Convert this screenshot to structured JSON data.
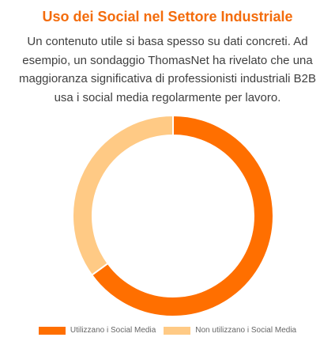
{
  "header": {
    "title": "Uso dei Social nel Settore Industriale",
    "description": "Un contenuto utile si basa spesso su dati concreti. Ad esempio, un sondaggio ThomasNet ha rivelato che una maggioranza significativa di professionisti industriali B2B usa i social media regolarmente per lavoro."
  },
  "colors": {
    "accent": "#f36c0c",
    "series_primary": "#ff6f00",
    "series_secondary": "#ffca85"
  },
  "chart_data": {
    "type": "pie",
    "variant": "doughnut",
    "title": "",
    "categories": [
      "Utilizzano i Social Media",
      "Non utilizzano i Social Media"
    ],
    "values": [
      65,
      35
    ],
    "colors": [
      "#ff6f00",
      "#ffca85"
    ],
    "legend_position": "bottom"
  }
}
